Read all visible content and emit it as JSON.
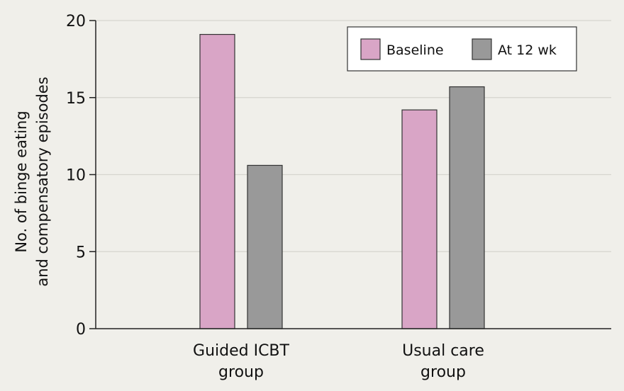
{
  "chart_data": {
    "type": "bar",
    "title": "",
    "xlabel": "",
    "ylabel": [
      "No. of binge eating",
      "and compensatory episodes"
    ],
    "categories": [
      [
        "Guided ICBT",
        "group"
      ],
      [
        "Usual care",
        "group"
      ]
    ],
    "series": [
      {
        "name": "Baseline",
        "color": "#d9a5c6",
        "values": [
          19.1,
          14.2
        ]
      },
      {
        "name": "At 12 wk",
        "color": "#999999",
        "values": [
          10.6,
          15.7
        ]
      }
    ],
    "ylim": [
      0,
      20
    ],
    "yticks": [
      0,
      5,
      10,
      15,
      20
    ],
    "grid": true,
    "legend_position": "top-right"
  }
}
